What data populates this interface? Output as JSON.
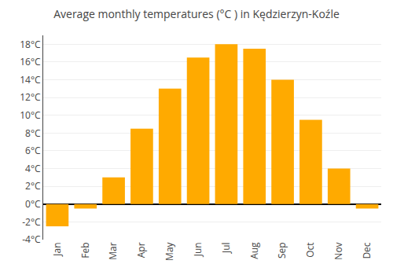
{
  "chart_data": {
    "type": "bar",
    "title": "Average monthly temperatures (°C ) in Kędzierzyn-Koźle",
    "categories": [
      "Jan",
      "Feb",
      "Mar",
      "Apr",
      "May",
      "Jun",
      "Jul",
      "Aug",
      "Sep",
      "Oct",
      "Nov",
      "Dec"
    ],
    "values": [
      -2.5,
      -0.5,
      3.0,
      8.5,
      13.0,
      16.5,
      18.0,
      17.5,
      14.0,
      9.5,
      4.0,
      -0.5
    ],
    "color": "#FFAA00",
    "ylim": [
      -4,
      19
    ],
    "yticks": [
      {
        "value": -4,
        "label": "-4°C"
      },
      {
        "value": -2,
        "label": "-2°C"
      },
      {
        "value": 0,
        "label": "0°C"
      },
      {
        "value": 2,
        "label": "2°C"
      },
      {
        "value": 4,
        "label": "4°C"
      },
      {
        "value": 6,
        "label": "6°C"
      },
      {
        "value": 8,
        "label": "8°C"
      },
      {
        "value": 10,
        "label": "10°C"
      },
      {
        "value": 12,
        "label": "12°C"
      },
      {
        "value": 14,
        "label": "14°C"
      },
      {
        "value": 16,
        "label": "16°C"
      },
      {
        "value": 18,
        "label": "18°C"
      }
    ],
    "grid": true
  }
}
